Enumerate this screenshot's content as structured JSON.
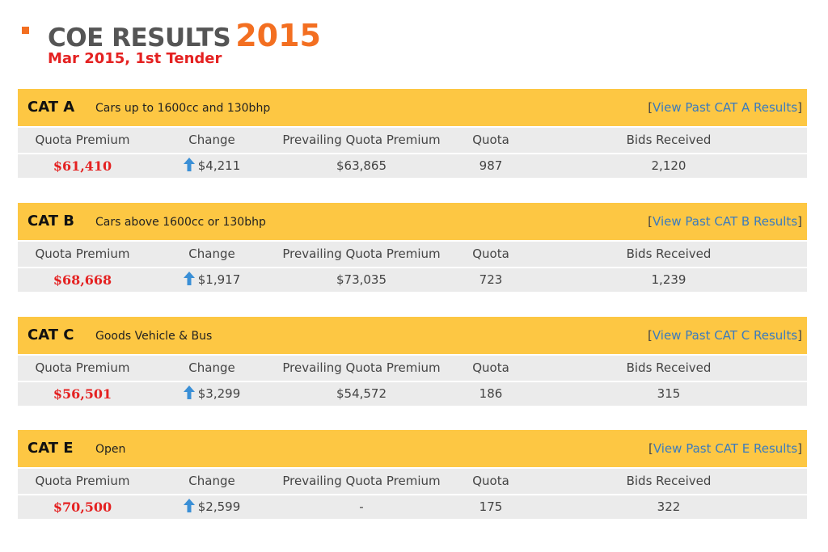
{
  "header": {
    "title_text": "COE RESULTS",
    "title_year": "2015",
    "subtitle": "Mar 2015, 1st Tender"
  },
  "columns": [
    "Quota Premium",
    "Change",
    "Prevailing Quota Premium",
    "Quota",
    "Bids Received"
  ],
  "colors": {
    "band": "#fdc743",
    "accent": "#f36f21",
    "premium": "#e42121",
    "link": "#3a7bbf",
    "arrow": "#3a8fd6"
  },
  "categories": [
    {
      "name": "CAT A",
      "desc": "Cars up to 1600cc and 130bhp",
      "link_open": "[",
      "link_text": "View Past CAT A Results",
      "link_close": "]",
      "premium": "$61,410",
      "change": "$4,211",
      "change_icon": "arrow-up-icon",
      "prevailing": "$63,865",
      "quota": "987",
      "bids": "2,120"
    },
    {
      "name": "CAT B",
      "desc": "Cars above 1600cc or 130bhp",
      "link_open": "[",
      "link_text": "View Past CAT B Results",
      "link_close": "]",
      "premium": "$68,668",
      "change": "$1,917",
      "change_icon": "arrow-up-icon",
      "prevailing": "$73,035",
      "quota": "723",
      "bids": "1,239"
    },
    {
      "name": "CAT C",
      "desc": "Goods Vehicle & Bus",
      "link_open": "[",
      "link_text": "View Past CAT C Results",
      "link_close": "]",
      "premium": "$56,501",
      "change": "$3,299",
      "change_icon": "arrow-up-icon",
      "prevailing": "$54,572",
      "quota": "186",
      "bids": "315"
    },
    {
      "name": "CAT E",
      "desc": "Open",
      "link_open": "[",
      "link_text": "View Past CAT E Results",
      "link_close": "]",
      "premium": "$70,500",
      "change": "$2,599",
      "change_icon": "arrow-up-icon",
      "prevailing": "-",
      "quota": "175",
      "bids": "322"
    }
  ]
}
